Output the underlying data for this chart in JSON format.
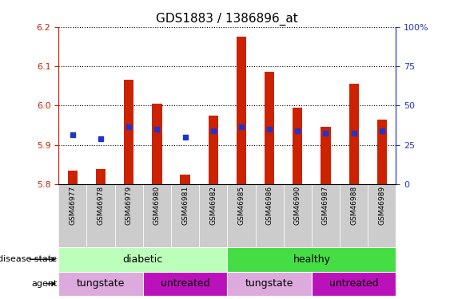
{
  "title": "GDS1883 / 1386896_at",
  "samples": [
    "GSM46977",
    "GSM46978",
    "GSM46979",
    "GSM46980",
    "GSM46981",
    "GSM46982",
    "GSM46985",
    "GSM46986",
    "GSM46990",
    "GSM46987",
    "GSM46988",
    "GSM46989"
  ],
  "bar_values": [
    5.835,
    5.838,
    6.065,
    6.005,
    5.825,
    5.975,
    6.175,
    6.085,
    5.995,
    5.945,
    6.055,
    5.965
  ],
  "bar_base": 5.8,
  "blue_values": [
    5.925,
    5.915,
    5.945,
    5.94,
    5.92,
    5.935,
    5.945,
    5.94,
    5.935,
    5.93,
    5.93,
    5.935
  ],
  "ylim_left": [
    5.8,
    6.2
  ],
  "ylim_right": [
    0,
    100
  ],
  "yticks_left": [
    5.8,
    5.9,
    6.0,
    6.1,
    6.2
  ],
  "yticks_right": [
    0,
    25,
    50,
    75,
    100
  ],
  "bar_color": "#CC2200",
  "blue_color": "#2233CC",
  "disease_groups": [
    {
      "label": "diabetic",
      "start": 0,
      "end": 6,
      "color": "#BBFFBB"
    },
    {
      "label": "healthy",
      "start": 6,
      "end": 12,
      "color": "#44DD44"
    }
  ],
  "agent_groups": [
    {
      "label": "tungstate",
      "start": 0,
      "end": 3,
      "color": "#DDAADD"
    },
    {
      "label": "untreated",
      "start": 3,
      "end": 6,
      "color": "#CC22CC"
    },
    {
      "label": "tungstate",
      "start": 6,
      "end": 9,
      "color": "#DDAADD"
    },
    {
      "label": "untreated",
      "start": 9,
      "end": 12,
      "color": "#CC22CC"
    }
  ],
  "background_color": "#FFFFFF",
  "tick_color_left": "#CC2200",
  "tick_color_right": "#2233CC",
  "bar_width": 0.35
}
